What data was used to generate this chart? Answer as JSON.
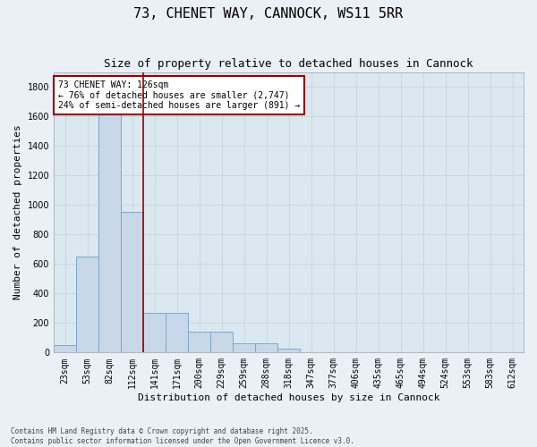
{
  "title": "73, CHENET WAY, CANNOCK, WS11 5RR",
  "subtitle": "Size of property relative to detached houses in Cannock",
  "xlabel": "Distribution of detached houses by size in Cannock",
  "ylabel": "Number of detached properties",
  "categories": [
    "23sqm",
    "53sqm",
    "82sqm",
    "112sqm",
    "141sqm",
    "171sqm",
    "200sqm",
    "229sqm",
    "259sqm",
    "288sqm",
    "318sqm",
    "347sqm",
    "377sqm",
    "406sqm",
    "435sqm",
    "465sqm",
    "494sqm",
    "524sqm",
    "553sqm",
    "583sqm",
    "612sqm"
  ],
  "values": [
    50,
    650,
    1650,
    950,
    270,
    270,
    140,
    140,
    60,
    60,
    25,
    0,
    0,
    0,
    0,
    0,
    0,
    0,
    0,
    0,
    0
  ],
  "bar_color": "#c8d8e8",
  "bar_edge_color": "#7aa8c8",
  "vline_x": 3.5,
  "vline_color": "#990000",
  "annotation_text": "73 CHENET WAY: 126sqm\n← 76% of detached houses are smaller (2,747)\n24% of semi-detached houses are larger (891) →",
  "annotation_box_color": "#990000",
  "annotation_text_color": "#000000",
  "annotation_bg": "#ffffff",
  "ylim": [
    0,
    1900
  ],
  "yticks": [
    0,
    200,
    400,
    600,
    800,
    1000,
    1200,
    1400,
    1600,
    1800
  ],
  "grid_color": "#c8d4dc",
  "bg_color": "#dce8f0",
  "fig_bg_color": "#eaf0f6",
  "footnote1": "Contains HM Land Registry data © Crown copyright and database right 2025.",
  "footnote2": "Contains public sector information licensed under the Open Government Licence v3.0.",
  "title_fontsize": 11,
  "subtitle_fontsize": 9,
  "axis_label_fontsize": 8,
  "tick_fontsize": 7,
  "annot_fontsize": 7
}
